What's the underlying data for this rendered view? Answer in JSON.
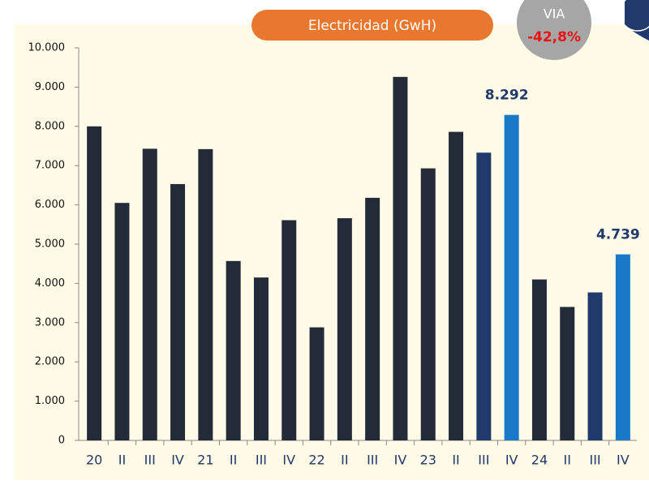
{
  "chart_data": {
    "type": "bar",
    "title": "Electricidad (GwH)",
    "badge": {
      "label": "VIA",
      "value": "-42,8%"
    },
    "categories": [
      "20",
      "II",
      "III",
      "IV",
      "21",
      "II",
      "III",
      "IV",
      "22",
      "II",
      "III",
      "IV",
      "23",
      "II",
      "III",
      "IV",
      "24",
      "II",
      "III",
      "IV"
    ],
    "values": [
      8000,
      6050,
      7430,
      6530,
      7420,
      4570,
      4150,
      5610,
      2880,
      5660,
      6180,
      9260,
      6930,
      7860,
      7330,
      8292,
      4100,
      3400,
      3770,
      4739
    ],
    "value_labels": [
      null,
      null,
      null,
      null,
      null,
      null,
      null,
      null,
      null,
      null,
      null,
      null,
      null,
      null,
      null,
      "8.292",
      null,
      null,
      null,
      "4.739"
    ],
    "colors": [
      "#232a38",
      "#232a38",
      "#232a38",
      "#232a38",
      "#232a38",
      "#232a38",
      "#232a38",
      "#232a38",
      "#232a38",
      "#232a38",
      "#232a38",
      "#232a38",
      "#232a38",
      "#232a38",
      "#1f3a6b",
      "#1a78c8",
      "#232a38",
      "#232a38",
      "#1f3a6b",
      "#1a78c8"
    ],
    "ylim": [
      0,
      10000
    ],
    "yticks": [
      0,
      {
        "value": 1000,
        "label": "1.000"
      },
      {
        "value": 2000,
        "label": "2.000"
      },
      {
        "value": 3000,
        "label": "3.000"
      },
      {
        "value": 4000,
        "label": "4.000"
      },
      {
        "value": 5000,
        "label": "5.000"
      },
      {
        "value": 6000,
        "label": "6.000"
      },
      {
        "value": 7000,
        "label": "7.000"
      },
      {
        "value": 8000,
        "label": "8.000"
      },
      {
        "value": 9000,
        "label": "9.000"
      },
      {
        "value": 10000,
        "label": "10.000"
      }
    ],
    "grid": false
  }
}
